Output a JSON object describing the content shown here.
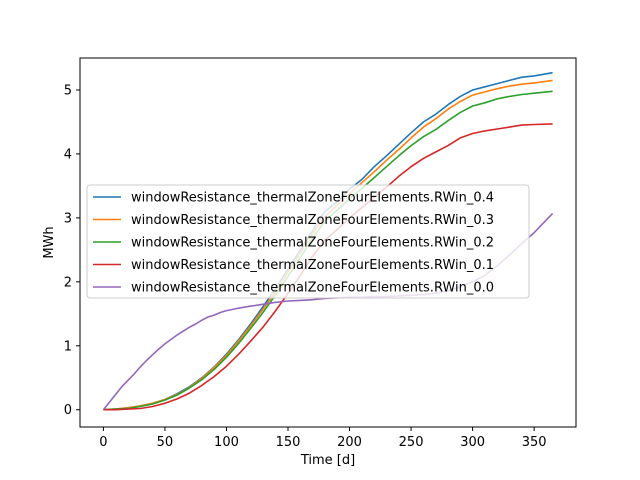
{
  "chart_data": {
    "type": "line",
    "xlabel": "Time [d]",
    "ylabel": "MWh",
    "xlim": [
      -19,
      384
    ],
    "ylim": [
      -0.27,
      5.5
    ],
    "x_ticks": [
      0,
      50,
      100,
      150,
      200,
      250,
      300,
      350
    ],
    "y_ticks": [
      0,
      1,
      2,
      3,
      4,
      5
    ],
    "grid": false,
    "legend_position": "center-left",
    "series": [
      {
        "name": "windowResistance_thermalZoneFourElements.RWin_0.4",
        "color": "#1f77b4",
        "x": [
          0,
          10,
          20,
          30,
          40,
          50,
          60,
          70,
          80,
          90,
          100,
          110,
          120,
          130,
          140,
          150,
          160,
          170,
          180,
          190,
          200,
          210,
          220,
          230,
          240,
          250,
          260,
          270,
          280,
          290,
          300,
          310,
          320,
          330,
          340,
          350,
          365
        ],
        "values": [
          0.0,
          0.01,
          0.03,
          0.06,
          0.1,
          0.16,
          0.25,
          0.36,
          0.5,
          0.67,
          0.87,
          1.1,
          1.35,
          1.62,
          1.9,
          2.2,
          2.5,
          2.8,
          3.1,
          3.25,
          3.45,
          3.6,
          3.8,
          3.97,
          4.15,
          4.33,
          4.5,
          4.62,
          4.77,
          4.9,
          5.0,
          5.05,
          5.1,
          5.15,
          5.2,
          5.22,
          5.27
        ]
      },
      {
        "name": "windowResistance_thermalZoneFourElements.RWin_0.3",
        "color": "#ff7f0e",
        "x": [
          0,
          10,
          20,
          30,
          40,
          50,
          60,
          70,
          80,
          90,
          100,
          110,
          120,
          130,
          140,
          150,
          160,
          170,
          180,
          190,
          200,
          210,
          220,
          230,
          240,
          250,
          260,
          270,
          280,
          290,
          300,
          310,
          320,
          330,
          340,
          350,
          365
        ],
        "values": [
          0.0,
          0.01,
          0.03,
          0.06,
          0.1,
          0.16,
          0.24,
          0.35,
          0.49,
          0.66,
          0.85,
          1.08,
          1.32,
          1.58,
          1.85,
          2.15,
          2.45,
          2.75,
          3.02,
          3.2,
          3.38,
          3.55,
          3.72,
          3.9,
          4.07,
          4.25,
          4.42,
          4.55,
          4.7,
          4.82,
          4.92,
          4.97,
          5.02,
          5.06,
          5.09,
          5.11,
          5.15
        ]
      },
      {
        "name": "windowResistance_thermalZoneFourElements.RWin_0.2",
        "color": "#2ca02c",
        "x": [
          0,
          10,
          20,
          30,
          40,
          50,
          60,
          70,
          80,
          90,
          100,
          110,
          120,
          130,
          140,
          150,
          160,
          170,
          180,
          190,
          200,
          210,
          220,
          230,
          240,
          250,
          260,
          270,
          280,
          290,
          300,
          310,
          320,
          330,
          340,
          350,
          365
        ],
        "values": [
          0.0,
          0.01,
          0.02,
          0.05,
          0.09,
          0.15,
          0.23,
          0.34,
          0.47,
          0.63,
          0.82,
          1.04,
          1.28,
          1.53,
          1.8,
          2.08,
          2.38,
          2.68,
          2.95,
          3.12,
          3.3,
          3.46,
          3.63,
          3.8,
          3.97,
          4.13,
          4.27,
          4.38,
          4.52,
          4.65,
          4.75,
          4.8,
          4.86,
          4.9,
          4.93,
          4.95,
          4.98
        ]
      },
      {
        "name": "windowResistance_thermalZoneFourElements.RWin_0.1",
        "color": "#d62728",
        "x": [
          0,
          10,
          20,
          30,
          40,
          50,
          60,
          70,
          80,
          90,
          100,
          110,
          120,
          130,
          140,
          150,
          160,
          170,
          180,
          190,
          200,
          210,
          220,
          230,
          240,
          250,
          260,
          270,
          280,
          290,
          300,
          310,
          320,
          330,
          340,
          350,
          365
        ],
        "values": [
          0.0,
          0.0,
          0.01,
          0.02,
          0.05,
          0.1,
          0.17,
          0.26,
          0.38,
          0.52,
          0.68,
          0.87,
          1.08,
          1.3,
          1.55,
          1.82,
          2.1,
          2.4,
          2.65,
          2.82,
          3.0,
          3.16,
          3.32,
          3.48,
          3.65,
          3.8,
          3.93,
          4.03,
          4.13,
          4.25,
          4.32,
          4.36,
          4.39,
          4.42,
          4.45,
          4.46,
          4.47
        ]
      },
      {
        "name": "windowResistance_thermalZoneFourElements.RWin_0.0",
        "color": "#9467bd",
        "x": [
          0,
          5,
          10,
          15,
          20,
          25,
          30,
          35,
          40,
          45,
          50,
          55,
          60,
          65,
          70,
          75,
          80,
          85,
          90,
          95,
          100,
          110,
          120,
          130,
          140,
          150,
          160,
          170,
          180,
          190,
          200,
          210,
          220,
          230,
          240,
          250,
          260,
          270,
          280,
          290,
          300,
          310,
          320,
          330,
          340,
          350,
          360,
          365
        ],
        "values": [
          0.0,
          0.12,
          0.24,
          0.36,
          0.46,
          0.56,
          0.67,
          0.77,
          0.86,
          0.95,
          1.03,
          1.1,
          1.17,
          1.23,
          1.29,
          1.34,
          1.4,
          1.45,
          1.48,
          1.52,
          1.55,
          1.59,
          1.62,
          1.65,
          1.68,
          1.7,
          1.71,
          1.72,
          1.74,
          1.75,
          1.76,
          1.76,
          1.77,
          1.77,
          1.78,
          1.79,
          1.8,
          1.82,
          1.86,
          1.92,
          2.0,
          2.1,
          2.25,
          2.42,
          2.6,
          2.77,
          2.97,
          3.07
        ]
      }
    ]
  }
}
